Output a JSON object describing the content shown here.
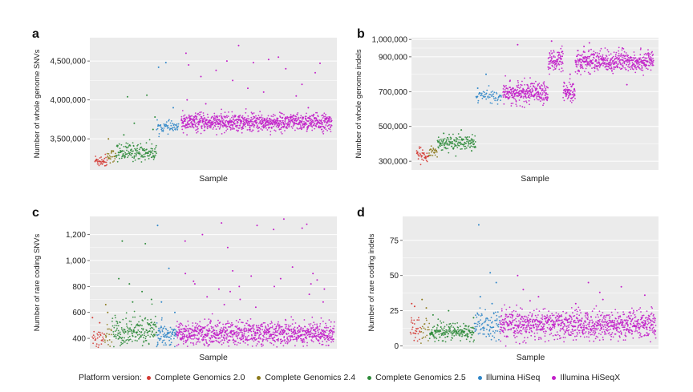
{
  "colors": {
    "panel_bg": "#ebebeb",
    "grid": "#ffffff",
    "text": "#222222"
  },
  "legend": {
    "title": "Platform version:",
    "items": [
      {
        "label": "Complete Genomics 2.0",
        "color": "#d43b35"
      },
      {
        "label": "Complete Genomics 2.4",
        "color": "#8c7a1c"
      },
      {
        "label": "Complete Genomics 2.5",
        "color": "#2e8b3a"
      },
      {
        "label": "Illumina HiSeq",
        "color": "#2f86c8"
      },
      {
        "label": "Illumina HiSeqX",
        "color": "#c21fc9"
      }
    ]
  },
  "chart_data": [
    {
      "panel_letter": "a",
      "type": "scatter",
      "xlabel": "Sample",
      "ylabel": "Number of whole genome SNVs",
      "ylim": [
        3100000,
        4800000
      ],
      "yticks": [
        3500000,
        4000000,
        4500000
      ],
      "ytick_labels": [
        "3,500,000",
        "4,000,000",
        "4,500,000"
      ],
      "grid": true,
      "series": [
        {
          "name": "Complete Genomics 2.0",
          "n": 40,
          "center": 3220000,
          "spread": 40000,
          "outliers": []
        },
        {
          "name": "Complete Genomics 2.4",
          "n": 25,
          "center": 3280000,
          "spread": 45000,
          "outliers": [
            3500000
          ]
        },
        {
          "name": "Complete Genomics 2.5",
          "n": 160,
          "center": 3330000,
          "spread": 55000,
          "outliers": [
            3550000,
            3700000,
            3780000,
            4040000,
            4060000,
            3620000
          ]
        },
        {
          "name": "Illumina HiSeq",
          "n": 60,
          "center": 3650000,
          "spread": 35000,
          "outliers": [
            4420000,
            4480000,
            3900000
          ]
        },
        {
          "name": "Illumina HiSeqX",
          "n": 1000,
          "center": 3710000,
          "spread": 55000,
          "outliers": [
            4000000,
            4100000,
            4200000,
            4300000,
            4400000,
            4450000,
            4500000,
            4550000,
            4600000,
            4700000,
            3900000,
            3950000,
            4150000,
            4350000,
            4480000,
            4520000,
            4470000,
            4250000,
            4050000,
            4380000
          ]
        }
      ]
    },
    {
      "panel_letter": "b",
      "type": "scatter",
      "xlabel": "Sample",
      "ylabel": "Number of whole genome indels",
      "ylim": [
        250000,
        1010000
      ],
      "yticks": [
        300000,
        500000,
        700000,
        900000,
        1000000
      ],
      "ytick_labels": [
        "300,000",
        "500,000",
        "700,000",
        "900,000",
        "1,000,000"
      ],
      "grid": true,
      "series": [
        {
          "name": "Complete Genomics 2.0",
          "n": 40,
          "center": 335000,
          "spread": 18000,
          "outliers": []
        },
        {
          "name": "Complete Genomics 2.4",
          "n": 25,
          "center": 355000,
          "spread": 18000,
          "outliers": []
        },
        {
          "name": "Complete Genomics 2.5",
          "n": 160,
          "center": 405000,
          "spread": 20000,
          "outliers": [
            460000,
            480000,
            360000
          ]
        },
        {
          "name": "Illumina HiSeq",
          "n": 60,
          "center": 675000,
          "spread": 18000,
          "outliers": [
            720000,
            800000
          ]
        },
        {
          "name": "Illumina HiSeqX",
          "n": 1000,
          "center": 700000,
          "spread": 30000,
          "segments": [
            {
              "from": 0.0,
              "to": 0.3,
              "center": 690000
            },
            {
              "from": 0.3,
              "to": 0.4,
              "center": 880000
            },
            {
              "from": 0.4,
              "to": 0.48,
              "center": 690000
            },
            {
              "from": 0.48,
              "to": 1.0,
              "center": 875000
            }
          ],
          "outliers": [
            970000,
            960000,
            950000,
            990000,
            980000,
            760000,
            800000,
            740000,
            720000,
            930000
          ]
        }
      ]
    },
    {
      "panel_letter": "c",
      "type": "scatter",
      "xlabel": "Sample",
      "ylabel": "Number of rare coding SNVs",
      "ylim": [
        320,
        1340
      ],
      "yticks": [
        400,
        600,
        800,
        1000,
        1200
      ],
      "ytick_labels": [
        "400",
        "600",
        "800",
        "1,000",
        "1,200"
      ],
      "grid": true,
      "series": [
        {
          "name": "Complete Genomics 2.0",
          "n": 30,
          "center": 410,
          "spread": 30,
          "outliers": [
            560,
            520
          ]
        },
        {
          "name": "Complete Genomics 2.4",
          "n": 20,
          "center": 420,
          "spread": 50,
          "outliers": [
            660,
            600
          ]
        },
        {
          "name": "Complete Genomics 2.5",
          "n": 200,
          "center": 450,
          "spread": 60,
          "outliers": [
            860,
            820,
            1130,
            1150,
            760,
            700,
            680
          ]
        },
        {
          "name": "Illumina HiSeq",
          "n": 90,
          "center": 430,
          "spread": 45,
          "outliers": [
            1270,
            940,
            600,
            680
          ]
        },
        {
          "name": "Illumina HiSeqX",
          "n": 1000,
          "center": 440,
          "spread": 45,
          "outliers": [
            1290,
            1270,
            1250,
            1200,
            1320,
            1150,
            1100,
            950,
            900,
            880,
            850,
            820,
            800,
            780,
            760,
            740,
            720,
            700,
            680,
            660,
            640,
            900,
            920,
            860,
            840,
            800,
            820,
            780,
            1240,
            1280
          ]
        }
      ]
    },
    {
      "panel_letter": "d",
      "type": "scatter",
      "xlabel": "Sample",
      "ylabel": "Number of rare coding indels",
      "ylim": [
        -2,
        92
      ],
      "yticks": [
        0,
        25,
        50,
        75
      ],
      "ytick_labels": [
        "0",
        "25",
        "50",
        "75"
      ],
      "grid": true,
      "series": [
        {
          "name": "Complete Genomics 2.0",
          "n": 30,
          "center": 13,
          "spread": 4,
          "outliers": [
            30,
            28
          ]
        },
        {
          "name": "Complete Genomics 2.4",
          "n": 20,
          "center": 12,
          "spread": 4,
          "outliers": [
            33,
            27
          ]
        },
        {
          "name": "Complete Genomics 2.5",
          "n": 200,
          "center": 10,
          "spread": 3,
          "outliers": [
            22,
            25,
            20
          ]
        },
        {
          "name": "Illumina HiSeq",
          "n": 90,
          "center": 14,
          "spread": 5,
          "outliers": [
            86,
            52,
            45,
            35,
            30
          ]
        },
        {
          "name": "Illumina HiSeqX",
          "n": 1000,
          "center": 15,
          "spread": 5,
          "outliers": [
            50,
            45,
            42,
            40,
            38,
            36,
            35,
            33,
            32,
            30
          ]
        }
      ]
    }
  ]
}
